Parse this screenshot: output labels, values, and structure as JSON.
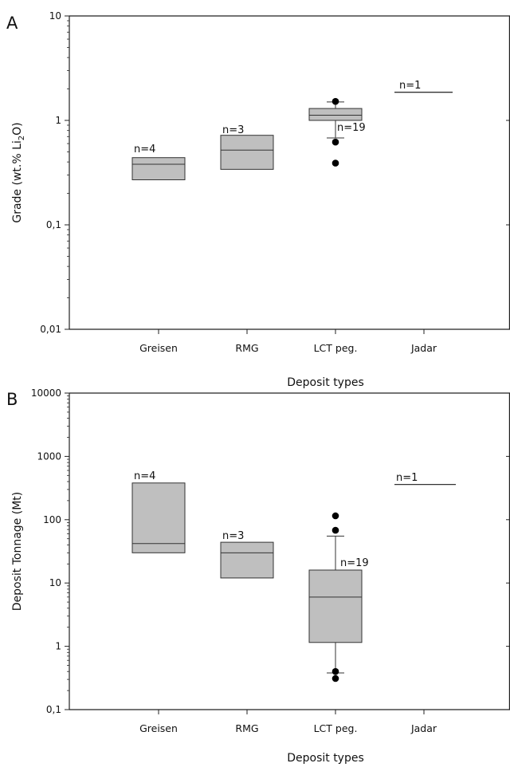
{
  "chart_data": [
    {
      "panel_label": "A",
      "type": "box",
      "categories": [
        "Greisen",
        "RMG",
        "LCT peg.",
        "Jadar"
      ],
      "xlabel": "Deposit types",
      "ylabel": "Grade (wt.% Li2O)",
      "ylabel_parts": {
        "main": "Grade (wt.% Li",
        "sub": "2",
        "end": "O)"
      },
      "yscale": "log",
      "ylim": [
        0.01,
        10
      ],
      "yticks": [
        0.01,
        0.1,
        1,
        10
      ],
      "ytick_labels": [
        "0,01",
        "0,1",
        "1",
        "10"
      ],
      "grid": false,
      "boxes": [
        {
          "category": "Greisen",
          "n_label": "n=4",
          "q1": 0.27,
          "median": 0.38,
          "q3": 0.44
        },
        {
          "category": "RMG",
          "n_label": "n=3",
          "q1": 0.34,
          "median": 0.52,
          "q3": 0.72
        },
        {
          "category": "LCT peg.",
          "n_label": "n=19",
          "q1": 1.0,
          "median": 1.12,
          "q3": 1.3,
          "whisker_low": 0.68,
          "whisker_high": 1.5,
          "outliers": [
            1.52,
            0.62,
            0.39
          ]
        },
        {
          "category": "Jadar",
          "n_label": "n=1",
          "value": 1.86
        }
      ]
    },
    {
      "panel_label": "B",
      "type": "box",
      "categories": [
        "Greisen",
        "RMG",
        "LCT peg.",
        "Jadar"
      ],
      "xlabel": "Deposit types",
      "ylabel": "Deposit Tonnage (Mt)",
      "yscale": "log",
      "ylim": [
        0.1,
        10000
      ],
      "yticks": [
        0.1,
        1,
        10,
        100,
        1000,
        10000
      ],
      "ytick_labels": [
        "0,1",
        "1",
        "10",
        "100",
        "1000",
        "10000"
      ],
      "grid": false,
      "boxes": [
        {
          "category": "Greisen",
          "n_label": "n=4",
          "q1": 30,
          "median": 42,
          "q3": 380
        },
        {
          "category": "RMG",
          "n_label": "n=3",
          "q1": 12,
          "median": 30,
          "q3": 44
        },
        {
          "category": "LCT peg.",
          "n_label": "n=19",
          "q1": 1.15,
          "median": 6,
          "q3": 16,
          "whisker_low": 0.38,
          "whisker_high": 55,
          "outliers": [
            115,
            68,
            0.4,
            0.31
          ]
        },
        {
          "category": "Jadar",
          "n_label": "n=1",
          "value": 360
        }
      ]
    }
  ],
  "colors": {
    "box_fill": "#bfbfbf",
    "axis": "#222222",
    "line": "#333333",
    "outlier": "#000000"
  }
}
